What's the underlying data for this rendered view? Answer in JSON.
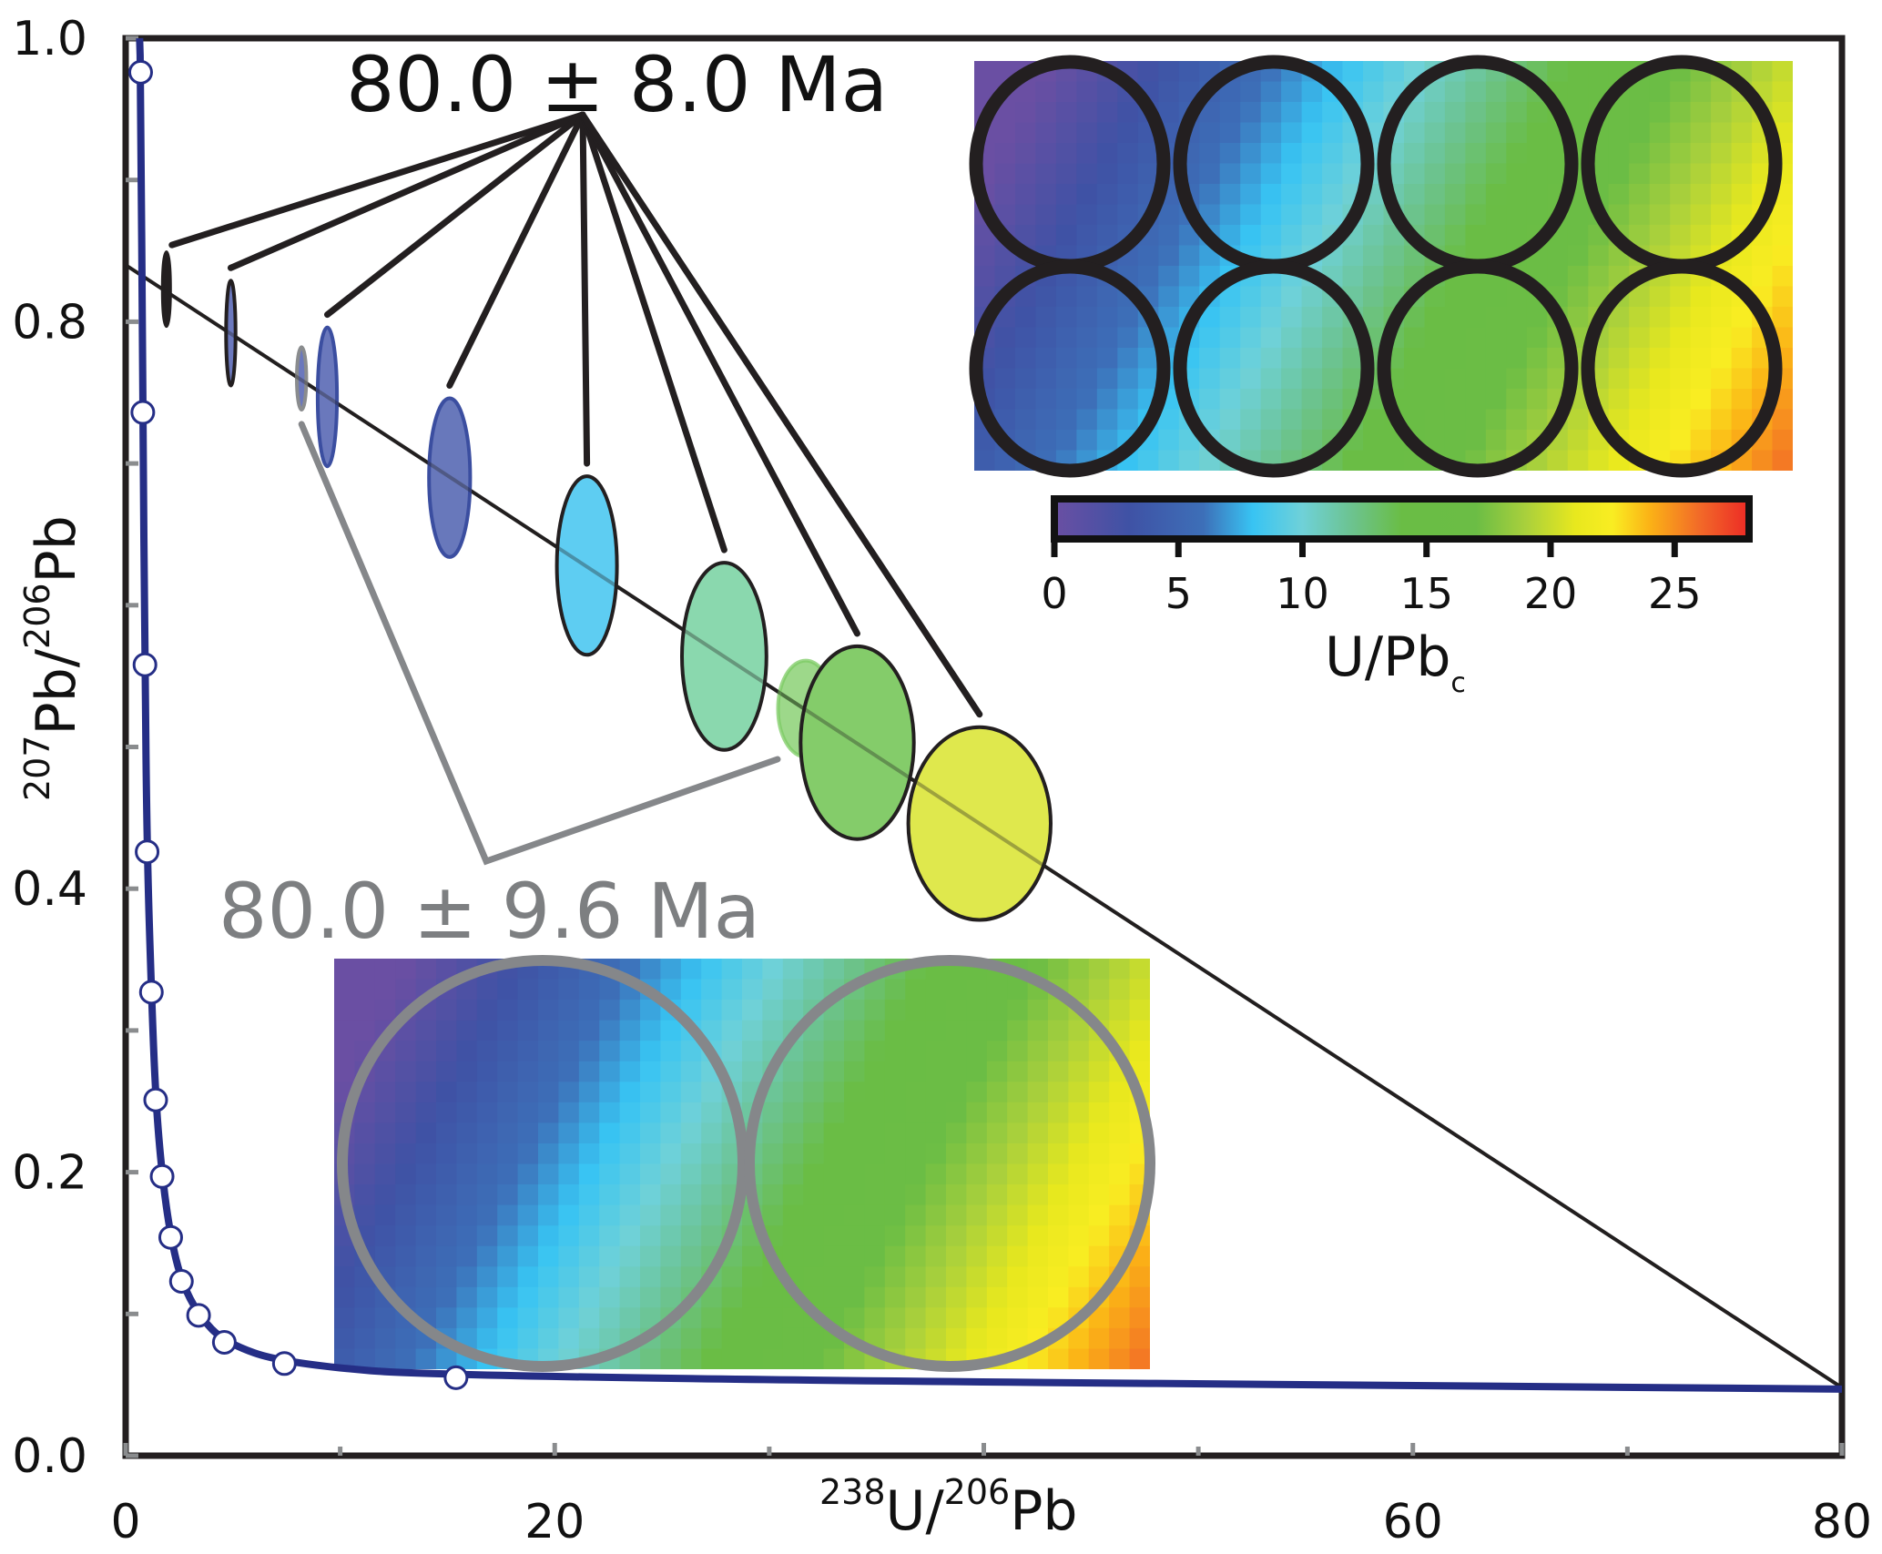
{
  "chart_data": {
    "type": "scatter",
    "title": "",
    "xlabel": {
      "sup": "238",
      "main": "U/",
      "sup2": "206",
      "main2": "Pb"
    },
    "ylabel": {
      "sup": "207",
      "main": "Pb/",
      "sup2": "206",
      "main2": "Pb"
    },
    "xlim": [
      0,
      80
    ],
    "ylim": [
      0,
      1.0
    ],
    "x_ticks": [
      0,
      20,
      40,
      60,
      80
    ],
    "x_tick_labels": [
      "0",
      "20",
      "",
      "60",
      "80"
    ],
    "x_minor_ticks": [
      10,
      30,
      50,
      70
    ],
    "y_ticks": [
      0.0,
      0.2,
      0.4,
      0.6,
      0.8,
      1.0
    ],
    "y_tick_labels": [
      "0.0",
      "0.2",
      "0.4",
      "",
      "0.8",
      "1.0"
    ],
    "y_minor_ticks": [
      0.1,
      0.3,
      0.5,
      0.7,
      0.9
    ],
    "grid": false,
    "concordia": {
      "name": "concordia",
      "color": "#252e86",
      "x": [
        0.7,
        0.8,
        0.9,
        1.0,
        1.2,
        1.4,
        1.7,
        2.1,
        2.6,
        3.4,
        4.6,
        7.4,
        15.4,
        80
      ],
      "y": [
        0.976,
        0.736,
        0.558,
        0.426,
        0.327,
        0.251,
        0.197,
        0.154,
        0.123,
        0.099,
        0.08,
        0.065,
        0.055,
        0.047
      ],
      "markers_x": [
        0.7,
        0.8,
        0.9,
        1.0,
        1.2,
        1.4,
        1.7,
        2.1,
        2.6,
        3.4,
        4.6,
        7.4,
        15.4
      ],
      "markers_y": [
        0.976,
        0.736,
        0.558,
        0.426,
        0.327,
        0.251,
        0.197,
        0.154,
        0.123,
        0.099,
        0.08,
        0.065,
        0.055
      ]
    },
    "discordia": {
      "name": "discordia",
      "color": "#111111",
      "x": [
        0,
        80
      ],
      "y": [
        0.84,
        0.048
      ]
    },
    "ellipses": [
      {
        "x": 1.9,
        "y": 0.823,
        "sx": 0.17,
        "sy": 0.026,
        "fill": "#231f20",
        "stroke": "#231f20",
        "opacity": 1.0
      },
      {
        "x": 4.9,
        "y": 0.792,
        "sx": 0.22,
        "sy": 0.037,
        "fill": "#6b78bd",
        "stroke": "#231f20",
        "opacity": 1.0
      },
      {
        "x": 8.2,
        "y": 0.76,
        "sx": 0.22,
        "sy": 0.022,
        "fill": "#6b78bd",
        "stroke": "#8a8c8e",
        "opacity": 1.0
      },
      {
        "x": 9.4,
        "y": 0.747,
        "sx": 0.45,
        "sy": 0.049,
        "fill": "#6a78bc",
        "stroke": "#3b4ea0",
        "opacity": 1.0
      },
      {
        "x": 15.1,
        "y": 0.69,
        "sx": 0.96,
        "sy": 0.056,
        "fill": "#6878bb",
        "stroke": "#3b4ea0",
        "opacity": 1.0
      },
      {
        "x": 21.5,
        "y": 0.628,
        "sx": 1.4,
        "sy": 0.063,
        "fill": "#5ecdf2",
        "stroke": "#231f20",
        "opacity": 1.0
      },
      {
        "x": 27.9,
        "y": 0.564,
        "sx": 1.97,
        "sy": 0.066,
        "fill": "#8ad8ae",
        "stroke": "#231f20",
        "opacity": 1.0
      },
      {
        "x": 31.7,
        "y": 0.527,
        "sx": 1.29,
        "sy": 0.034,
        "fill": "#7ccb63",
        "stroke": "#7ccb63",
        "opacity": 0.75
      },
      {
        "x": 34.1,
        "y": 0.503,
        "sx": 2.64,
        "sy": 0.068,
        "fill": "#84cc6a",
        "stroke": "#231f20",
        "opacity": 1.0
      },
      {
        "x": 39.8,
        "y": 0.446,
        "sx": 3.32,
        "sy": 0.068,
        "fill": "#dfe84d",
        "stroke": "#231f20",
        "opacity": 1.0
      }
    ],
    "annotations": [
      {
        "text": "80.0 ± 8.0 Ma",
        "color": "#111111",
        "points_to_ellipses": [
          0,
          1,
          3,
          4,
          5,
          6,
          8,
          9
        ]
      },
      {
        "text": "80.0 ± 9.6 Ma",
        "color": "#7d7f81",
        "points_to_ellipses": [
          2,
          7
        ]
      }
    ],
    "colorbar": {
      "label": "U/Pb",
      "label_sub": "c",
      "range": [
        0,
        28
      ],
      "ticks": [
        0,
        5,
        10,
        15,
        20,
        25
      ],
      "tick_labels": [
        "0",
        "5",
        "10",
        "15",
        "20",
        "25"
      ],
      "stops": [
        {
          "v": 0,
          "color": "#6a4fa3"
        },
        {
          "v": 3,
          "color": "#3f52a5"
        },
        {
          "v": 6,
          "color": "#3d6fb8"
        },
        {
          "v": 8,
          "color": "#38c4f3"
        },
        {
          "v": 10,
          "color": "#6fd1d8"
        },
        {
          "v": 12,
          "color": "#6cc38f"
        },
        {
          "v": 14,
          "color": "#6abd45"
        },
        {
          "v": 17,
          "color": "#6bbd45"
        },
        {
          "v": 19,
          "color": "#a9d03c"
        },
        {
          "v": 21,
          "color": "#e8e81e"
        },
        {
          "v": 22.5,
          "color": "#f9ed22"
        },
        {
          "v": 24,
          "color": "#fbb216"
        },
        {
          "v": 26,
          "color": "#f26a28"
        },
        {
          "v": 28,
          "color": "#ec2a26"
        }
      ]
    },
    "insets": [
      {
        "name": "inset-8-spots",
        "rows": 2,
        "cols": 4,
        "ring_color": "#231f20"
      },
      {
        "name": "inset-2-spots",
        "rows": 1,
        "cols": 2,
        "ring_color": "#85878a"
      }
    ]
  }
}
